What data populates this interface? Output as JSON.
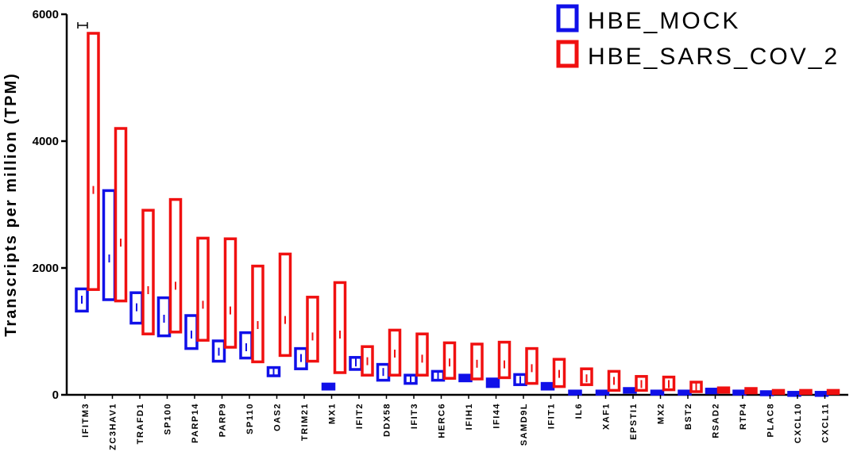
{
  "chart_data": {
    "type": "box",
    "ylabel": "Transcripts per million (TPM)",
    "xlabel": "",
    "ylim": [
      0,
      6000
    ],
    "yticks": [
      "0",
      "2000",
      "4000",
      "6000"
    ],
    "legend_position": "top-right",
    "categories": [
      "IFITM3",
      "ZC3HAV1",
      "TRAFD1",
      "SP100",
      "PARP14",
      "PARP9",
      "SP110",
      "OAS2",
      "TRIM21",
      "MX1",
      "IFIT2",
      "DDX58",
      "IFIT3",
      "HERC6",
      "IFIH1",
      "IFI44",
      "SAMD9L",
      "IFIT1",
      "IL6",
      "XAF1",
      "EPSTI1",
      "MX2",
      "BST2",
      "RSAD2",
      "RTP4",
      "PLAC8",
      "CXCL10",
      "CXCL11"
    ],
    "series": [
      {
        "name": "HBE_MOCK",
        "color": "#1010e8",
        "boxes": [
          {
            "min": 1320,
            "median": 1500,
            "max": 1670
          },
          {
            "min": 1500,
            "median": 2150,
            "max": 3220
          },
          {
            "min": 1130,
            "median": 1380,
            "max": 1610
          },
          {
            "min": 930,
            "median": 1200,
            "max": 1530
          },
          {
            "min": 730,
            "median": 950,
            "max": 1250
          },
          {
            "min": 530,
            "median": 680,
            "max": 850
          },
          {
            "min": 580,
            "median": 750,
            "max": 980
          },
          {
            "min": 300,
            "median": 370,
            "max": 430
          },
          {
            "min": 410,
            "median": 580,
            "max": 730
          },
          {
            "min": 90,
            "median": 130,
            "max": 170
          },
          {
            "min": 400,
            "median": 510,
            "max": 590
          },
          {
            "min": 230,
            "median": 360,
            "max": 480
          },
          {
            "min": 180,
            "median": 250,
            "max": 310
          },
          {
            "min": 230,
            "median": 310,
            "max": 370
          },
          {
            "min": 220,
            "median": 260,
            "max": 310
          },
          {
            "min": 130,
            "median": 190,
            "max": 250
          },
          {
            "min": 160,
            "median": 230,
            "max": 320
          },
          {
            "min": 90,
            "median": 130,
            "max": 180
          },
          {
            "min": 20,
            "median": 40,
            "max": 60
          },
          {
            "min": 20,
            "median": 40,
            "max": 60
          },
          {
            "min": 40,
            "median": 70,
            "max": 100
          },
          {
            "min": 20,
            "median": 40,
            "max": 60
          },
          {
            "min": 20,
            "median": 40,
            "max": 60
          },
          {
            "min": 30,
            "median": 60,
            "max": 90
          },
          {
            "min": 20,
            "median": 40,
            "max": 60
          },
          {
            "min": 10,
            "median": 30,
            "max": 50
          },
          {
            "min": 10,
            "median": 25,
            "max": 40
          },
          {
            "min": 10,
            "median": 25,
            "max": 40
          }
        ]
      },
      {
        "name": "HBE_SARS_COV_2",
        "color": "#f01010",
        "boxes": [
          {
            "min": 1660,
            "median": 3230,
            "max": 5700
          },
          {
            "min": 1480,
            "median": 2400,
            "max": 4200
          },
          {
            "min": 960,
            "median": 1650,
            "max": 2910
          },
          {
            "min": 990,
            "median": 1720,
            "max": 3080
          },
          {
            "min": 860,
            "median": 1420,
            "max": 2470
          },
          {
            "min": 750,
            "median": 1330,
            "max": 2460
          },
          {
            "min": 520,
            "median": 1100,
            "max": 2030
          },
          {
            "min": 620,
            "median": 1180,
            "max": 2220
          },
          {
            "min": 530,
            "median": 920,
            "max": 1540
          },
          {
            "min": 350,
            "median": 950,
            "max": 1770
          },
          {
            "min": 310,
            "median": 530,
            "max": 760
          },
          {
            "min": 310,
            "median": 650,
            "max": 1020
          },
          {
            "min": 310,
            "median": 570,
            "max": 960
          },
          {
            "min": 260,
            "median": 510,
            "max": 820
          },
          {
            "min": 250,
            "median": 490,
            "max": 800
          },
          {
            "min": 270,
            "median": 480,
            "max": 830
          },
          {
            "min": 180,
            "median": 420,
            "max": 730
          },
          {
            "min": 130,
            "median": 330,
            "max": 560
          },
          {
            "min": 160,
            "median": 260,
            "max": 410
          },
          {
            "min": 70,
            "median": 220,
            "max": 370
          },
          {
            "min": 70,
            "median": 170,
            "max": 290
          },
          {
            "min": 80,
            "median": 170,
            "max": 280
          },
          {
            "min": 50,
            "median": 130,
            "max": 200
          },
          {
            "min": 40,
            "median": 80,
            "max": 110
          },
          {
            "min": 30,
            "median": 60,
            "max": 100
          },
          {
            "min": 20,
            "median": 40,
            "max": 70
          },
          {
            "min": 20,
            "median": 40,
            "max": 70
          },
          {
            "min": 20,
            "median": 40,
            "max": 70
          }
        ]
      }
    ]
  }
}
